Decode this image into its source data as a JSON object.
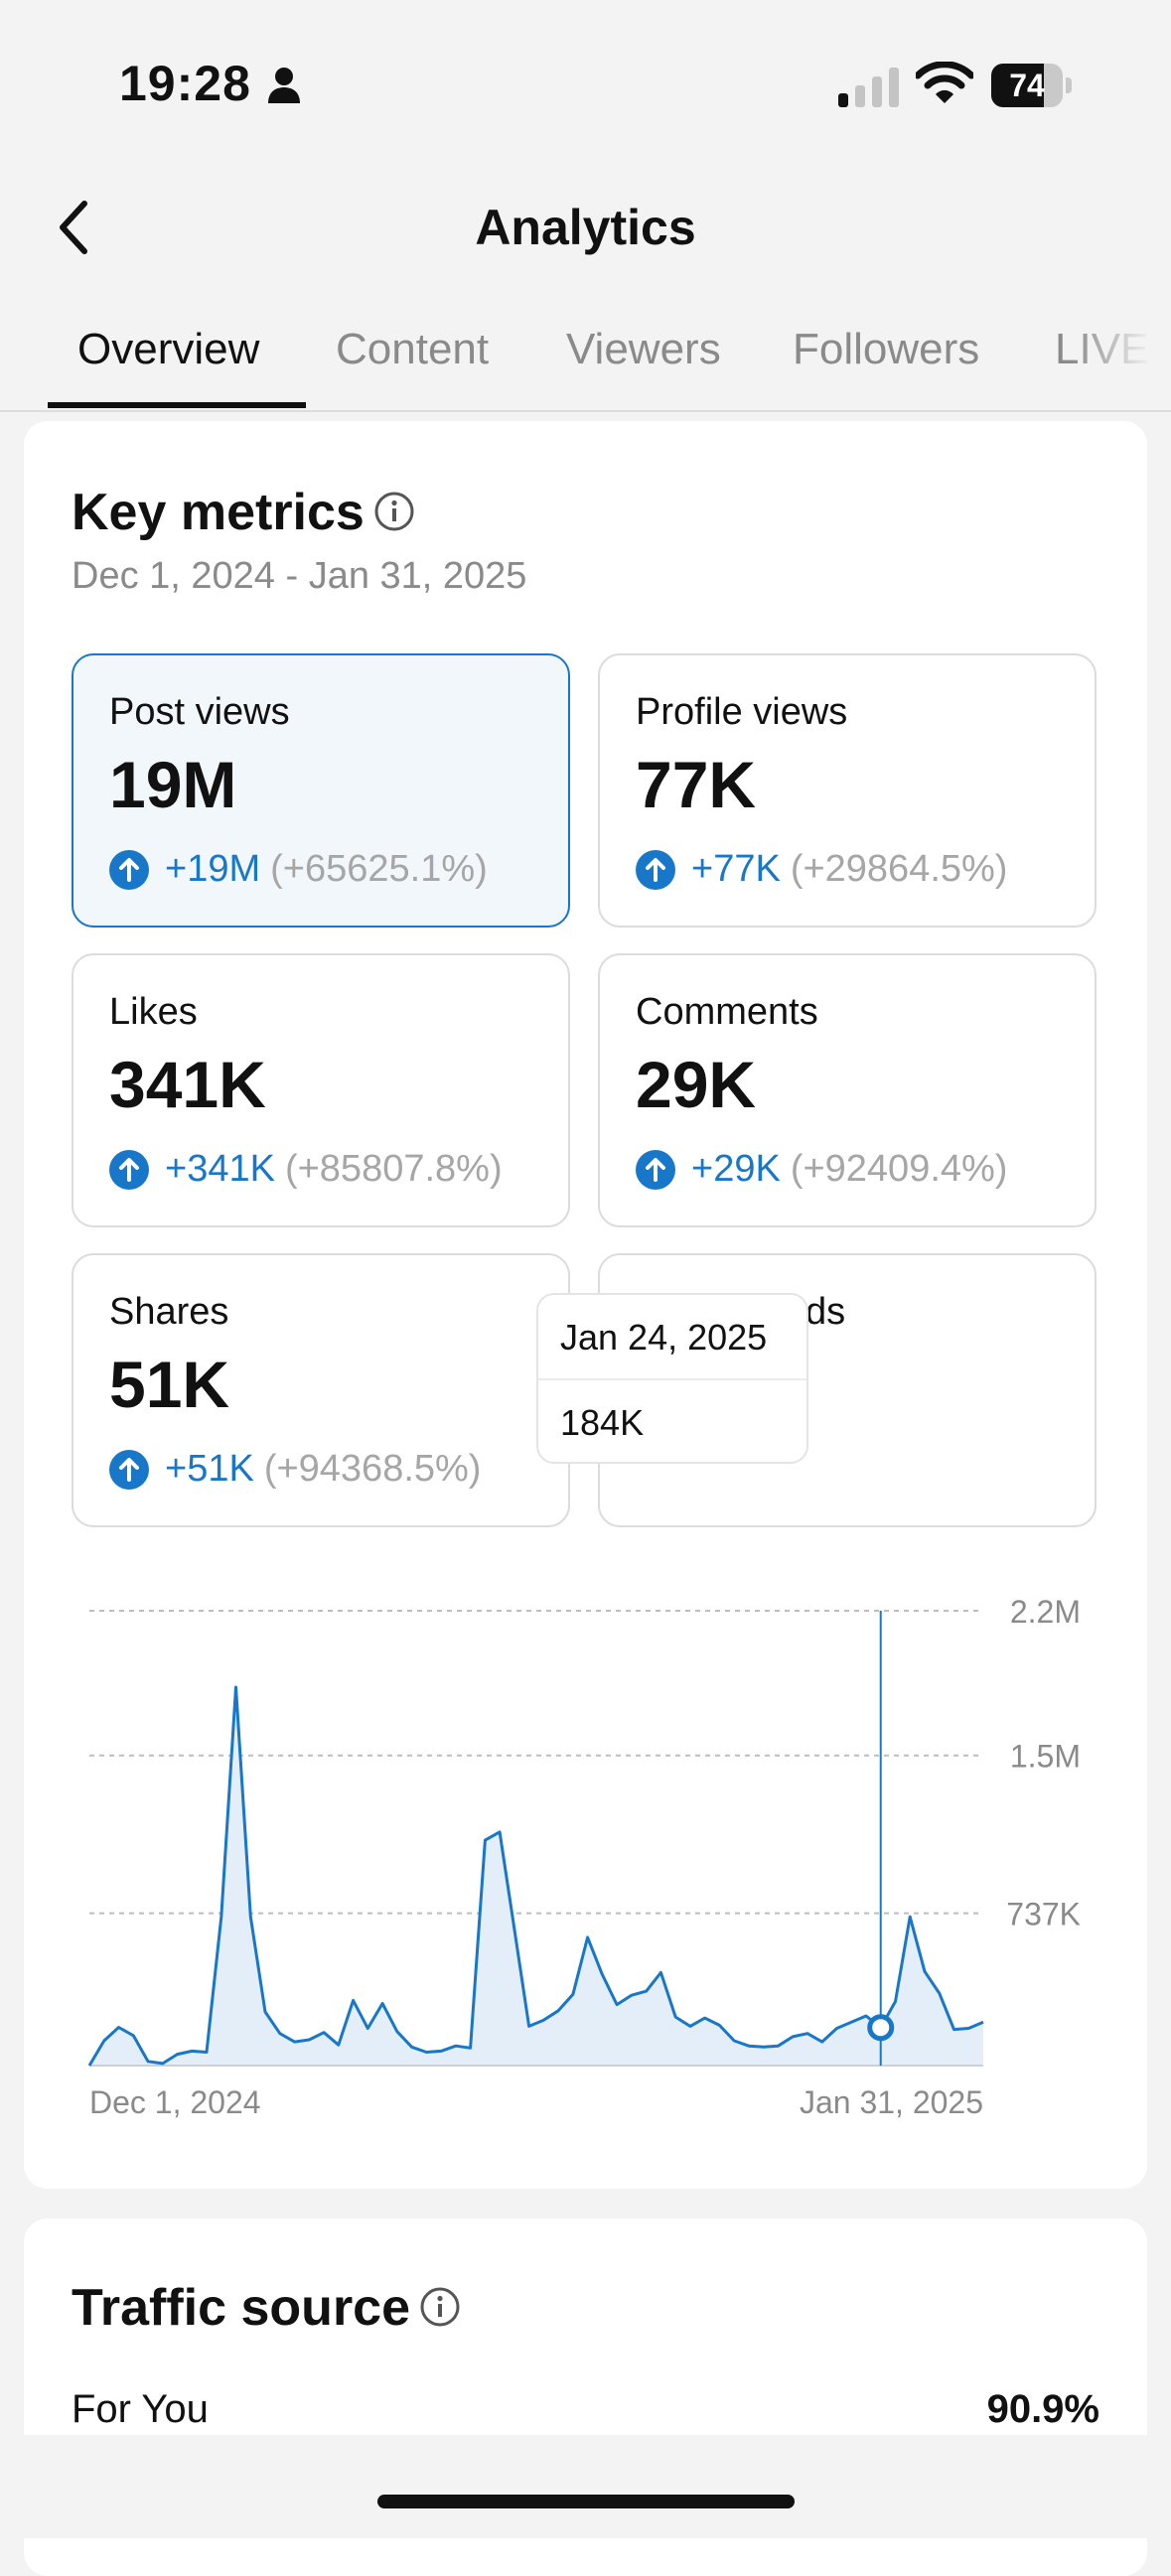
{
  "status_bar": {
    "time": "19:28",
    "battery": "74",
    "battery_level": 0.74
  },
  "header": {
    "title": "Analytics"
  },
  "tabs": [
    {
      "label": "Overview",
      "active": true
    },
    {
      "label": "Content"
    },
    {
      "label": "Viewers"
    },
    {
      "label": "Followers"
    },
    {
      "label": "LIVE"
    }
  ],
  "key_metrics": {
    "title": "Key metrics",
    "date_range": "Dec 1, 2024 - Jan 31, 2025",
    "metrics": [
      {
        "label": "Post views",
        "value": "19M",
        "delta": "+19M",
        "pct": "(+65625.1%)",
        "selected": true
      },
      {
        "label": "Profile views",
        "value": "77K",
        "delta": "+77K",
        "pct": "(+29864.5%)"
      },
      {
        "label": "Likes",
        "value": "341K",
        "delta": "+341K",
        "pct": "(+85807.8%)"
      },
      {
        "label": "Comments",
        "value": "29K",
        "delta": "+29K",
        "pct": "(+92409.4%)"
      },
      {
        "label": "Shares",
        "value": "51K",
        "delta": "+51K",
        "pct": "(+94368.5%)"
      },
      {
        "label": "Est. rewards",
        "value": "-"
      }
    ]
  },
  "chart_data": {
    "type": "area",
    "series": [
      {
        "values": [
          0,
          120000,
          185000,
          145000,
          20000,
          10000,
          55000,
          70000,
          65000,
          720000,
          1830000,
          720000,
          260000,
          155000,
          115000,
          125000,
          160000,
          100000,
          315000,
          180000,
          300000,
          165000,
          90000,
          65000,
          70000,
          95000,
          85000,
          1090000,
          1130000,
          660000,
          190000,
          220000,
          265000,
          345000,
          620000,
          440000,
          295000,
          340000,
          360000,
          450000,
          235000,
          190000,
          230000,
          195000,
          120000,
          95000,
          90000,
          95000,
          140000,
          155000,
          115000,
          180000,
          210000,
          240000,
          184000,
          310000,
          720000,
          455000,
          350000,
          175000,
          180000,
          210000
        ]
      }
    ],
    "x_tick_labels": [
      "Dec 1, 2024",
      "Jan 31, 2025"
    ],
    "y_tick_labels": [
      "2.2M",
      "1.5M",
      "737K"
    ],
    "y_ticks": [
      2200000,
      1500000,
      737000
    ],
    "ylim": [
      0,
      2200000
    ],
    "grid": true,
    "highlight": {
      "index": 54,
      "date": "Jan 24, 2025",
      "value": "184K"
    },
    "colors": {
      "line": "#1877c9",
      "fill": "#e4eef9",
      "grid": "#bdbdbd"
    }
  },
  "traffic_source": {
    "title": "Traffic source",
    "rows": [
      {
        "label": "For You",
        "value": "90.9%"
      }
    ]
  }
}
